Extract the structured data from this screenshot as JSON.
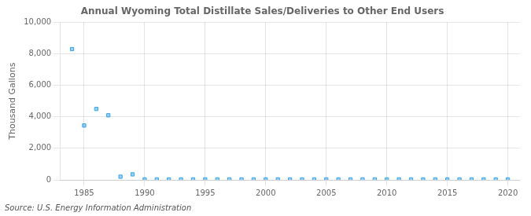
{
  "chart_data": {
    "type": "scatter",
    "title": "Annual Wyoming Total Distillate Sales/Deliveries to Other End Users",
    "ylabel": "Thousand Gallons",
    "annotations": [
      "Source: U.S. Energy Information Administration"
    ],
    "marker": "square",
    "x": [
      1984,
      1985,
      1986,
      1987,
      1988,
      1989,
      1990,
      1991,
      1992,
      1993,
      1994,
      1995,
      1996,
      1997,
      1998,
      1999,
      2000,
      2001,
      2002,
      2003,
      2004,
      2005,
      2006,
      2007,
      2008,
      2009,
      2010,
      2011,
      2012,
      2013,
      2014,
      2015,
      2016,
      2017,
      2018,
      2019,
      2020
    ],
    "values": [
      8300,
      3450,
      4500,
      4100,
      200,
      350,
      30,
      30,
      30,
      30,
      30,
      30,
      30,
      30,
      30,
      30,
      30,
      30,
      30,
      30,
      30,
      30,
      30,
      30,
      30,
      30,
      30,
      30,
      30,
      30,
      30,
      30,
      30,
      30,
      30,
      30,
      30
    ],
    "xlim": [
      1983,
      2021
    ],
    "xticks": [
      1985,
      1990,
      1995,
      2000,
      2005,
      2010,
      2015,
      2020
    ],
    "ylim": [
      0,
      10000
    ],
    "yticks": [
      0,
      {
        "value": 2000,
        "label": "2,000"
      },
      {
        "value": 4000,
        "label": "4,000"
      },
      {
        "value": 6000,
        "label": "6,000"
      },
      {
        "value": 8000,
        "label": "8,000"
      },
      {
        "value": 10000,
        "label": "10,000"
      }
    ],
    "grid": true
  }
}
